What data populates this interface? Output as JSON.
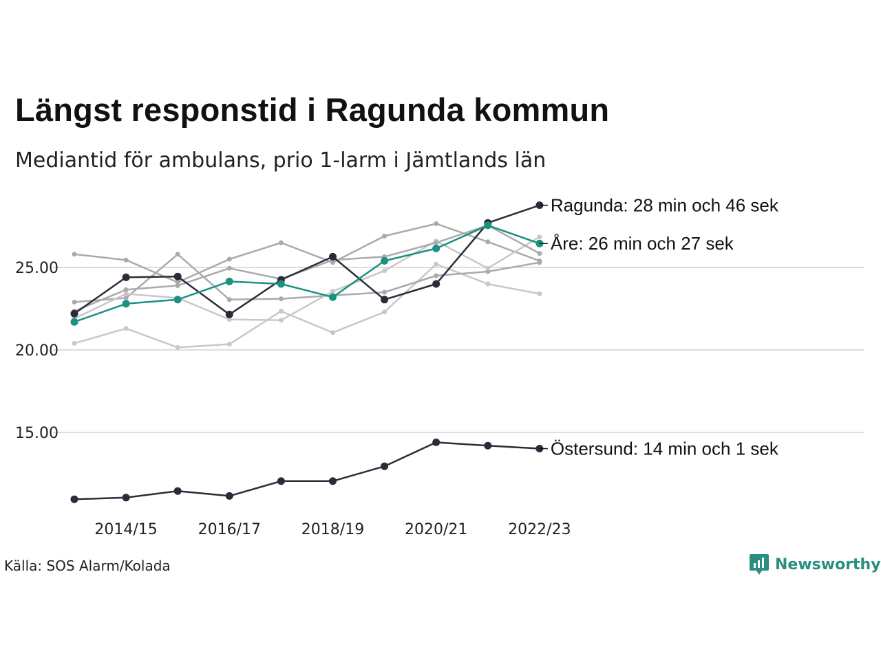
{
  "title": "Längst responstid i Ragunda kommun",
  "subtitle": "Mediantid för ambulans, prio 1-larm i Jämtlands län",
  "source": "Källa: SOS Alarm/Kolada",
  "brand": {
    "name": "Newsworthy",
    "icon": "newsworthy-logo-icon",
    "color": "#2a8f80"
  },
  "colors": {
    "highlight_dark": "#2b2b3a",
    "highlight_teal": "#1a9182",
    "background_series": [
      "#aaaaaa",
      "#c8c8c8"
    ],
    "grid": "#dddddd"
  },
  "chart_data": {
    "type": "line",
    "title": "Längst responstid i Ragunda kommun",
    "subtitle": "Mediantid för ambulans, prio 1-larm i Jämtlands län",
    "x": [
      "2013/14",
      "2014/15",
      "2015/16",
      "2016/17",
      "2017/18",
      "2018/19",
      "2019/20",
      "2020/21",
      "2021/22",
      "2022/23"
    ],
    "x_tick_labels": [
      "2014/15",
      "2016/17",
      "2018/19",
      "2020/21",
      "2022/23"
    ],
    "y_tick_labels": [
      "25.00",
      "20.00",
      "15.00"
    ],
    "y_ticks": [
      25,
      20,
      15
    ],
    "ylim": [
      10,
      29
    ],
    "grid": "horizontal",
    "legend": "direct labels at line ends",
    "highlighted_series": [
      {
        "name": "Ragunda",
        "label": "Ragunda: 28 min och 46 sek",
        "style": "dark",
        "values": [
          22.2,
          24.4,
          24.45,
          22.15,
          24.25,
          25.65,
          23.05,
          24.0,
          27.7,
          28.77
        ]
      },
      {
        "name": "Åre",
        "label": "Åre: 26 min och 27 sek",
        "style": "teal",
        "values": [
          21.7,
          22.8,
          23.05,
          24.15,
          24.0,
          23.2,
          25.4,
          26.15,
          27.55,
          26.45
        ]
      },
      {
        "name": "Östersund",
        "label": "Östersund: 14 min och 1 sek",
        "style": "dark",
        "values": [
          10.95,
          11.05,
          11.45,
          11.15,
          12.05,
          12.05,
          12.95,
          14.4,
          14.2,
          14.02
        ]
      }
    ],
    "background_series": [
      {
        "values": [
          25.8,
          25.45,
          24.1,
          25.5,
          26.5,
          25.3,
          26.9,
          27.65,
          26.55,
          25.4
        ]
      },
      {
        "values": [
          20.4,
          21.3,
          20.15,
          20.35,
          22.35,
          21.05,
          22.3,
          25.2,
          24.0,
          23.4
        ]
      },
      {
        "values": [
          22.9,
          23.15,
          25.8,
          23.05,
          23.1,
          23.3,
          23.5,
          24.5,
          24.75,
          25.3
        ]
      },
      {
        "values": [
          21.9,
          23.4,
          23.15,
          21.85,
          21.8,
          23.55,
          24.8,
          26.6,
          24.95,
          26.85
        ]
      },
      {
        "values": [
          22.35,
          23.65,
          23.9,
          24.95,
          24.3,
          25.45,
          25.65,
          26.5,
          27.55,
          25.85
        ]
      }
    ]
  }
}
